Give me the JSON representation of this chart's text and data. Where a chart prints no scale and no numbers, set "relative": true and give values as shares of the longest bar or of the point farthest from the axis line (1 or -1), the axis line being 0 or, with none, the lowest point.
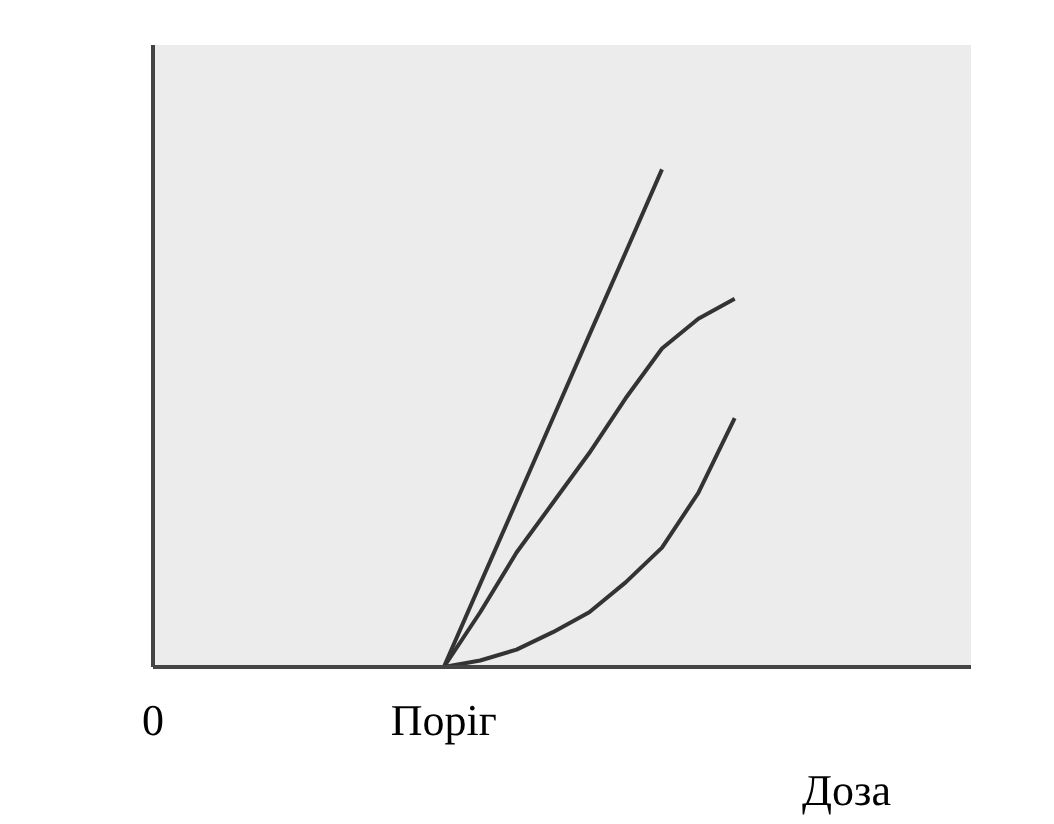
{
  "chart_data": {
    "type": "line",
    "relative": true,
    "xlabel": "Доза",
    "grid": false,
    "tick_labels": "x",
    "marker": "none",
    "line_style": "solid",
    "categories": [
      "0",
      null,
      null,
      null,
      null,
      null,
      null,
      null,
      "Поріг",
      null,
      null,
      null,
      null,
      null,
      null,
      null,
      null,
      null,
      null,
      null,
      null,
      null,
      null
    ],
    "series": [
      {
        "color": "#333333",
        "values": [
          null,
          null,
          null,
          null,
          null,
          null,
          null,
          null,
          0,
          0.167,
          0.333,
          0.5,
          0.667,
          0.833,
          1,
          null,
          null,
          null,
          null,
          null,
          null,
          null,
          null
        ]
      },
      {
        "color": "#333333",
        "values": [
          null,
          null,
          null,
          null,
          null,
          null,
          null,
          null,
          0,
          0.11,
          0.23,
          0.33,
          0.43,
          0.54,
          0.64,
          0.7,
          0.74,
          null,
          null,
          null,
          null,
          null,
          null
        ]
      },
      {
        "color": "#333333",
        "values": [
          null,
          null,
          null,
          null,
          null,
          null,
          null,
          null,
          0,
          0.013,
          0.035,
          0.07,
          0.11,
          0.17,
          0.24,
          0.35,
          0.5,
          null,
          null,
          null,
          null,
          null,
          null
        ]
      }
    ]
  }
}
